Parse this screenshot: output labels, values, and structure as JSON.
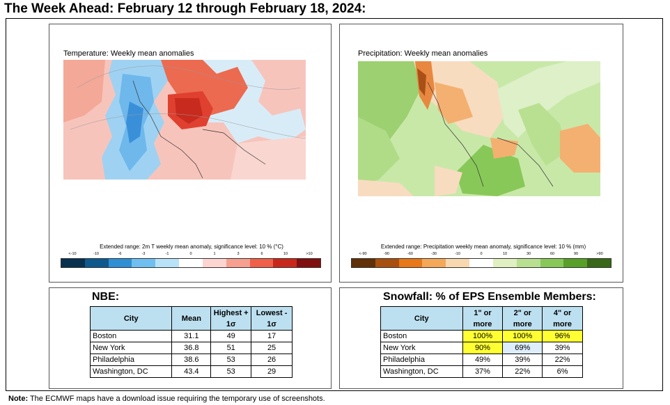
{
  "title": "The Week Ahead: February 12 through February 18, 2024:",
  "temperature_map": {
    "label": "Temperature: Weekly mean anomalies",
    "colorbar_title": "Extended range: 2m T weekly mean anomaly, significance level: 10 % (°C)",
    "ticks": [
      "<-10",
      "-10",
      "-6",
      "-3",
      "-1",
      "0",
      "1",
      "3",
      "6",
      "10",
      ">10"
    ],
    "colors": [
      "#08304f",
      "#0f5a8c",
      "#2e8fd4",
      "#6fc0f0",
      "#b8e2f8",
      "#ffffff",
      "#fdd5d0",
      "#f8a090",
      "#f06048",
      "#c8281c",
      "#801010"
    ]
  },
  "precip_map": {
    "label": "Precipitation: Weekly mean anomalies",
    "colorbar_title": "Extended range: Precipitation weekly mean anomaly, significance level: 10 % (mm)",
    "ticks": [
      "<-90",
      "-90",
      "-60",
      "-30",
      "-10",
      "0",
      "10",
      "30",
      "60",
      "90",
      ">90"
    ],
    "colors": [
      "#603008",
      "#a85010",
      "#e87818",
      "#f4a858",
      "#f8d8b0",
      "#ffffff",
      "#e0f0c0",
      "#b8e090",
      "#88c858",
      "#58a028",
      "#386818"
    ]
  },
  "nbe": {
    "title": "NBE:",
    "headers": [
      "City",
      "Mean",
      "Highest + 1σ",
      "Lowest - 1σ"
    ],
    "rows": [
      [
        "Boston",
        "31.1",
        "49",
        "17"
      ],
      [
        "New York",
        "36.8",
        "51",
        "25"
      ],
      [
        "Philadelphia",
        "38.6",
        "53",
        "26"
      ],
      [
        "Washington, DC",
        "43.4",
        "53",
        "29"
      ]
    ]
  },
  "snowfall": {
    "title": "Snowfall: % of EPS Ensemble Members:",
    "headers": [
      "City",
      "1\" or more",
      "2\" or more",
      "4\" or more"
    ],
    "rows": [
      [
        "Boston",
        "100%",
        "100%",
        "96%"
      ],
      [
        "New York",
        "90%",
        "69%",
        "39%"
      ],
      [
        "Philadelphia",
        "49%",
        "39%",
        "22%"
      ],
      [
        "Washington, DC",
        "37%",
        "22%",
        "6%"
      ]
    ]
  },
  "note_label": "Note:",
  "note_text": " The ECMWF maps have a download issue requiring the temporary use of screenshots."
}
